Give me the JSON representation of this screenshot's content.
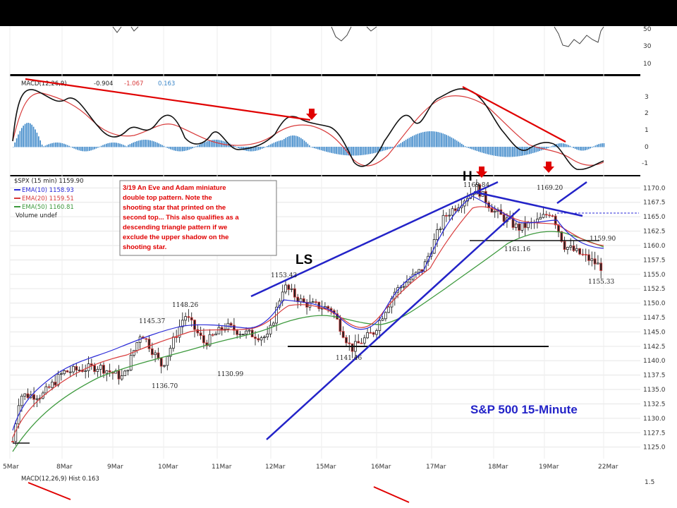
{
  "chart_data": {
    "type": "candlestick",
    "symbol": "$SPX",
    "interval": "15 min",
    "last_price": "1159.90",
    "title": "S&P 500 15-Minute",
    "x_labels": [
      "5Mar",
      "8Mar",
      "9Mar",
      "10Mar",
      "11Mar",
      "12Mar",
      "15Mar",
      "16Mar",
      "17Mar",
      "18Mar",
      "19Mar",
      "22Mar"
    ],
    "ylim": [
      1123,
      1172
    ],
    "price_ticks": [
      "1170.0",
      "1167.5",
      "1165.0",
      "1162.5",
      "1160.0",
      "1157.5",
      "1155.0",
      "1152.5",
      "1150.0",
      "1147.5",
      "1145.0",
      "1142.5",
      "1140.0",
      "1137.5",
      "1135.0",
      "1132.5",
      "1130.0",
      "1127.5",
      "1125.0"
    ],
    "legend": {
      "symbol_line": "$SPX (15 min) 1159.90",
      "ema10": "EMA(10) 1158.93",
      "ema20": "EMA(20) 1159.51",
      "ema50": "EMA(50) 1160.81",
      "volume": "Volume undef"
    },
    "price_labels": [
      {
        "text": "1136.70",
        "value": 1136.7,
        "x_label": "9Mar"
      },
      {
        "text": "1145.37",
        "value": 1145.37,
        "x_label": "9Mar"
      },
      {
        "text": "1148.26",
        "value": 1148.26,
        "x_label": "10Mar"
      },
      {
        "text": "1130.99",
        "value": 1130.99,
        "x_label": "11Mar"
      },
      {
        "text": "1153.43",
        "value": 1153.43,
        "x_label": "12Mar"
      },
      {
        "text": "1141.46",
        "value": 1141.46,
        "x_label": "15Mar"
      },
      {
        "text": "1169.84",
        "value": 1169.84,
        "x_label": "17Mar"
      },
      {
        "text": "1161.16",
        "value": 1161.16,
        "x_label": "18Mar"
      },
      {
        "text": "1169.20",
        "value": 1169.2,
        "x_label": "19Mar"
      },
      {
        "text": "1159.90",
        "value": 1159.9,
        "x_label": "19Mar"
      },
      {
        "text": "1155.33",
        "value": 1155.33,
        "x_label": "22Mar"
      }
    ],
    "annotations": {
      "ls": "LS",
      "h": "H",
      "note_lines": [
        "3/19 An Eve and Adam miniature",
        "double top pattern. Note the",
        "shooting star that printed on the",
        "second top... This also qualifies as a",
        "descending triangle pattern if we",
        "exclude the upper shadow on the",
        "shooting star."
      ]
    },
    "macd": {
      "label_prefix": "MACD(12,26,9)",
      "values": [
        "-0.904",
        "-1.067",
        "0.163"
      ],
      "ticks": [
        "3",
        "2",
        "1",
        "0",
        "-1"
      ]
    },
    "rsi_ticks": [
      "50",
      "30",
      "10"
    ],
    "bottom_panel": {
      "label": "MACD(12,26,9) Hist 0.163",
      "tick": "1.5"
    }
  },
  "colors": {
    "ema10": "#2b2bd8",
    "ema20": "#d83a3a",
    "ema50": "#3e9a3e",
    "trend": "#2323c8",
    "note": "#e00000",
    "macd_hist": "#3a86c8"
  }
}
